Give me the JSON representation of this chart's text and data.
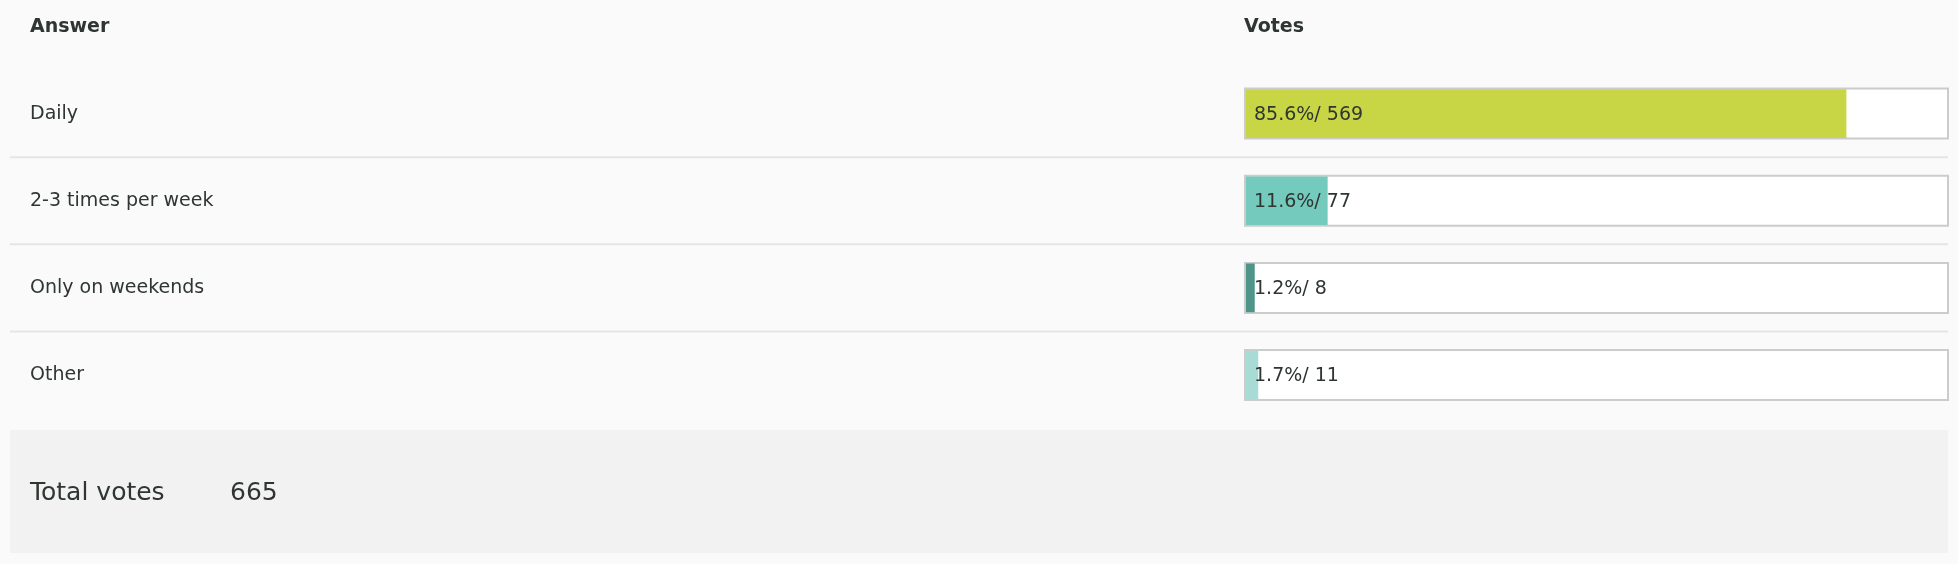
{
  "chart_data": {
    "type": "bar",
    "orientation": "horizontal",
    "ylabel": "Answer",
    "xlabel": "Votes",
    "categories": [
      "Daily",
      "2-3 times per week",
      "Only on weekends",
      "Other"
    ],
    "values": [
      85.6,
      11.6,
      1.2,
      1.7
    ],
    "value_labels": [
      "85.6%/ 569",
      "11.6%/ 77",
      "1.2%/ 8",
      "1.7%/ 11"
    ],
    "colors": [
      "#c8d645",
      "#74cbbd",
      "#4f9488",
      "#a9dbd5"
    ],
    "xlim": [
      0,
      100
    ],
    "tick_labels": "y",
    "grid": "y",
    "annotations": [
      "Total votes",
      "665"
    ]
  }
}
